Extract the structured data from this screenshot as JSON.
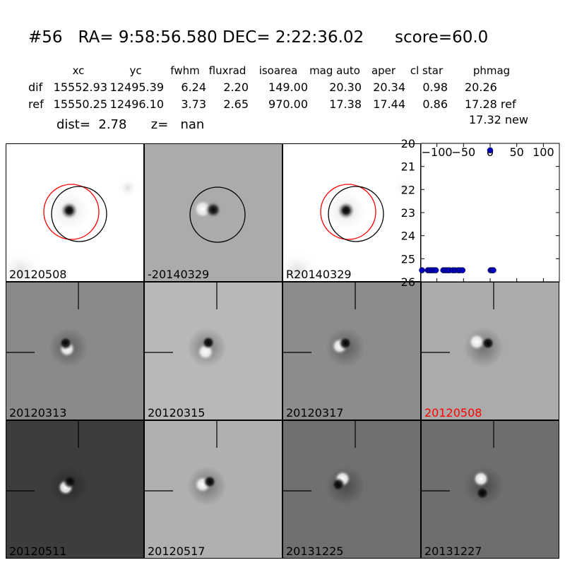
{
  "header": {
    "title": "#56   RA= 9:58:56.580 DEC= 2:22:36.02      score=60.0"
  },
  "stats_table": {
    "columns": [
      "",
      "xc",
      "yc",
      "fwhm",
      "fluxrad",
      "isoarea",
      "mag auto",
      "aper",
      "cl star",
      "phmag"
    ],
    "rows": [
      {
        "label": "dif",
        "values": [
          "15552.93",
          "12495.39",
          "6.24",
          "2.20",
          "149.00",
          "20.30",
          "20.34",
          "0.98",
          "20.26"
        ]
      },
      {
        "label": "ref",
        "values": [
          "15550.25",
          "12496.10",
          "3.73",
          "2.65",
          "970.00",
          "17.38",
          "17.44",
          "0.86",
          "17.28 ref"
        ]
      }
    ],
    "new_mag": "17.32 new"
  },
  "dist_line": "dist=  2.78      z=   nan",
  "panels_top": [
    {
      "label": "20120508",
      "label_color": "#000000",
      "bg": "#ffffff",
      "type": "direct"
    },
    {
      "label": "-20140329",
      "label_color": "#000000",
      "bg": "#ababab",
      "type": "diff"
    },
    {
      "label": "R20140329",
      "label_color": "#000000",
      "bg": "#ffffff",
      "type": "direct"
    }
  ],
  "panels_grid": [
    {
      "label": "20120313",
      "label_color": "#000000",
      "bg": "#8a8a8a"
    },
    {
      "label": "20120315",
      "label_color": "#000000",
      "bg": "#b8b8b8"
    },
    {
      "label": "20120317",
      "label_color": "#000000",
      "bg": "#8c8c8c"
    },
    {
      "label": "20120508",
      "label_color": "#ff0000",
      "bg": "#ababab"
    },
    {
      "label": "20120511",
      "label_color": "#000000",
      "bg": "#3d3d3d"
    },
    {
      "label": "20120517",
      "label_color": "#000000",
      "bg": "#b0b0b0"
    },
    {
      "label": "20131225",
      "label_color": "#000000",
      "bg": "#707070"
    },
    {
      "label": "20131227",
      "label_color": "#000000",
      "bg": "#6e6e6e"
    }
  ],
  "chart_data": {
    "type": "scatter",
    "xlim": [
      -130,
      130
    ],
    "ylim": [
      26,
      20
    ],
    "xticks": [
      -100,
      -50,
      0,
      50,
      100
    ],
    "xtick_labels": [
      "−100",
      "−50",
      "0",
      "50",
      "100"
    ],
    "yticks": [
      20,
      21,
      22,
      23,
      24,
      25,
      26
    ],
    "point_color": "#0000bf",
    "points": [
      {
        "x": -128,
        "y": 25.5
      },
      {
        "x": -117,
        "y": 25.5
      },
      {
        "x": -113,
        "y": 25.5
      },
      {
        "x": -110,
        "y": 25.5
      },
      {
        "x": -106,
        "y": 25.5
      },
      {
        "x": -102,
        "y": 25.5
      },
      {
        "x": -88,
        "y": 25.5
      },
      {
        "x": -84,
        "y": 25.5
      },
      {
        "x": -80,
        "y": 25.5
      },
      {
        "x": -76,
        "y": 25.5
      },
      {
        "x": -70,
        "y": 25.5
      },
      {
        "x": -66,
        "y": 25.5
      },
      {
        "x": -60,
        "y": 25.5
      },
      {
        "x": -57,
        "y": 25.5
      },
      {
        "x": -52,
        "y": 25.5
      },
      {
        "x": 0,
        "y": 20.3
      },
      {
        "x": 1,
        "y": 25.5
      },
      {
        "x": 4,
        "y": 25.5
      },
      {
        "x": 6,
        "y": 25.5
      }
    ]
  }
}
